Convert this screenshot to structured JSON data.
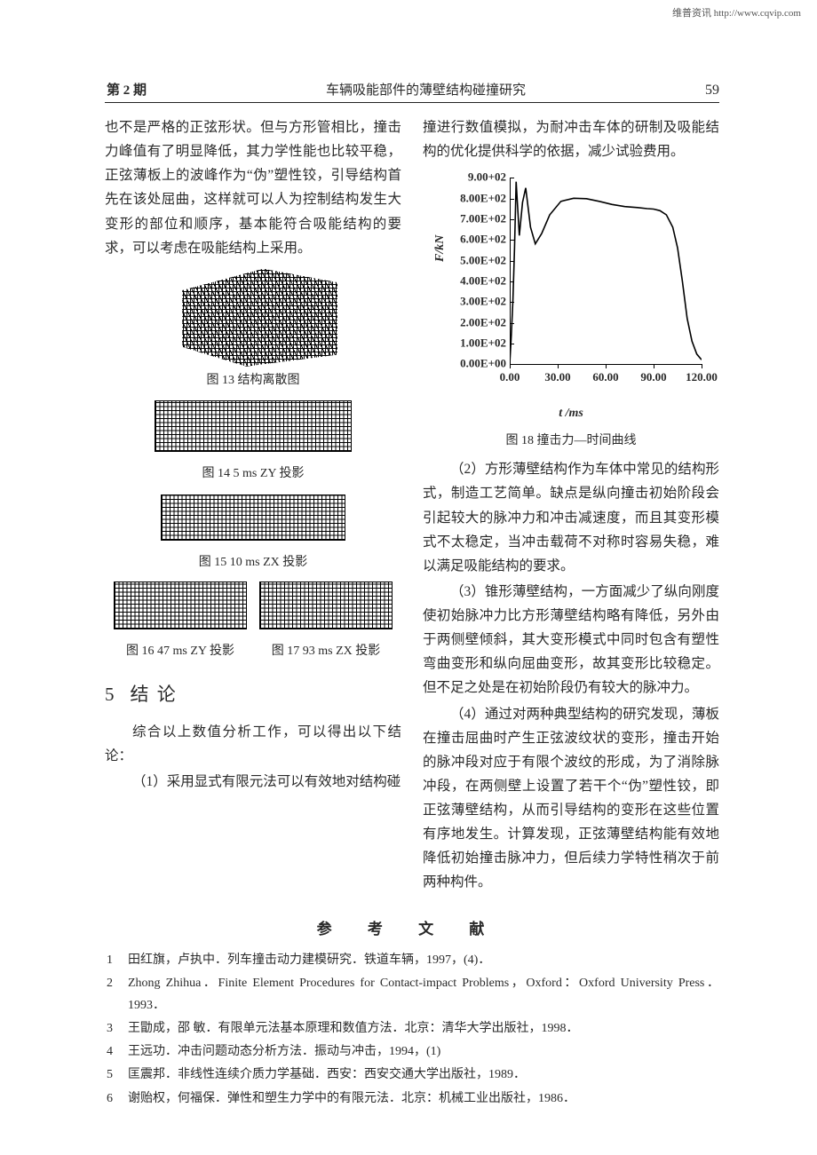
{
  "watermark": "维普资讯 http://www.cqvip.com",
  "header": {
    "issue": "第 2 期",
    "title": "车辆吸能部件的薄壁结构碰撞研究",
    "page_number": "59"
  },
  "left_column": {
    "opening_paragraph": "也不是严格的正弦形状。但与方形管相比，撞击力峰值有了明显降低，其力学性能也比较平稳，正弦薄板上的波峰作为“伪”塑性铰，引导结构首先在该处屈曲，这样就可以人为控制结构发生大变形的部位和顺序，基本能符合吸能结构的要求，可以考虑在吸能结构上采用。",
    "fig13_caption": "图 13  结构离散图",
    "fig14_caption": "图 14  5 ms ZY 投影",
    "fig15_caption": "图 15  10 ms ZX 投影",
    "fig16_caption": "图 16  47 ms ZY 投影",
    "fig17_caption": "图 17  93 ms ZX 投影",
    "section5_number": "5",
    "section5_title": "结        论",
    "para5_intro": "综合以上数值分析工作，可以得出以下结论：",
    "para5_item1": "（1）采用显式有限元法可以有效地对结构碰"
  },
  "right_column": {
    "continuation": "撞进行数值模拟，为耐冲击车体的研制及吸能结构的优化提供科学的依据，减少试验费用。",
    "chart": {
      "type": "line",
      "y_ticks": [
        "0.00E+00",
        "1.00E+02",
        "2.00E+02",
        "3.00E+02",
        "4.00E+02",
        "5.00E+02",
        "6.00E+02",
        "7.00E+02",
        "8.00E+02",
        "9.00+02"
      ],
      "x_ticks": [
        "0.00",
        "30.00",
        "60.00",
        "90.00",
        "120.00"
      ],
      "y_label": "F/kN",
      "x_label": "t /ms",
      "x_range": [
        0,
        120
      ],
      "y_range": [
        0,
        900
      ],
      "axis_color": "#000000",
      "line_color": "#000000",
      "line_width": 1.6,
      "background": "#ffffff",
      "label_fontsize": 13,
      "points": [
        [
          0,
          0
        ],
        [
          1,
          140
        ],
        [
          2,
          310
        ],
        [
          3,
          560
        ],
        [
          4,
          880
        ],
        [
          5,
          750
        ],
        [
          6,
          620
        ],
        [
          8,
          780
        ],
        [
          10,
          850
        ],
        [
          13,
          660
        ],
        [
          16,
          580
        ],
        [
          20,
          630
        ],
        [
          25,
          720
        ],
        [
          32,
          785
        ],
        [
          40,
          800
        ],
        [
          48,
          798
        ],
        [
          56,
          785
        ],
        [
          64,
          770
        ],
        [
          72,
          760
        ],
        [
          80,
          755
        ],
        [
          86,
          750
        ],
        [
          90,
          748
        ],
        [
          94,
          740
        ],
        [
          98,
          720
        ],
        [
          102,
          660
        ],
        [
          105,
          560
        ],
        [
          108,
          400
        ],
        [
          111,
          220
        ],
        [
          114,
          110
        ],
        [
          117,
          48
        ],
        [
          120,
          20
        ]
      ]
    },
    "fig18_caption": "图 18  撞击力—时间曲线",
    "para2": "（2）方形薄壁结构作为车体中常见的结构形式，制造工艺简单。缺点是纵向撞击初始阶段会引起较大的脉冲力和冲击减速度，而且其变形模式不太稳定，当冲击载荷不对称时容易失稳，难以满足吸能结构的要求。",
    "para3": "（3）锥形薄壁结构，一方面减少了纵向刚度使初始脉冲力比方形薄壁结构略有降低，另外由于两侧壁倾斜，其大变形模式中同时包含有塑性弯曲变形和纵向屈曲变形，故其变形比较稳定。但不足之处是在初始阶段仍有较大的脉冲力。",
    "para4": "（4）通过对两种典型结构的研究发现，薄板在撞击屈曲时产生正弦波纹状的变形，撞击开始的脉冲段对应于有限个波纹的形成，为了消除脉冲段，在两侧壁上设置了若干个“伪”塑性铰，即正弦薄壁结构，从而引导结构的变形在这些位置有序地发生。计算发现，正弦薄壁结构能有效地降低初始撞击脉冲力，但后续力学特性稍次于前两种构件。"
  },
  "references": {
    "heading": "参 考 文 献",
    "items": [
      "田红旗，卢执中．列车撞击动力建模研究．铁道车辆，1997，(4)．",
      "Zhong Zhihua．Finite Element Procedures for Contact-impact Problems，Oxford：Oxford University Press．1993．",
      "王勖成，邵  敏．有限单元法基本原理和数值方法．北京：清华大学出版社，1998．",
      "王远功．冲击问题动态分析方法．振动与冲击，1994，(1)",
      "匡震邦．非线性连续介质力学基础．西安：西安交通大学出版社，1989．",
      "谢贻权，何福保．弹性和塑生力学中的有限元法．北京：机械工业出版社，1986．"
    ]
  }
}
